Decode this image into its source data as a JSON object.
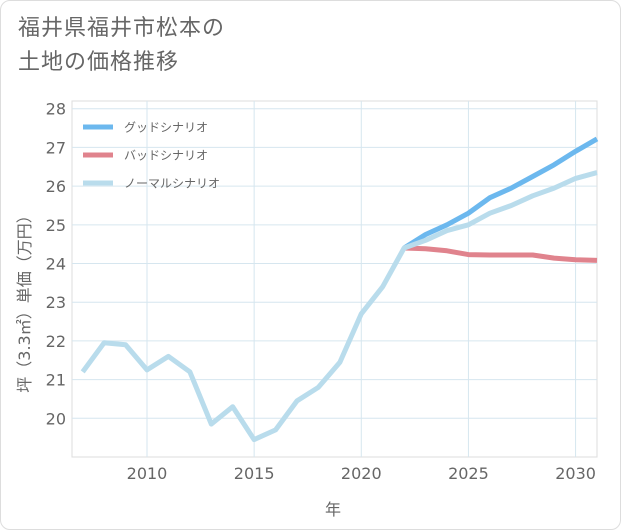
{
  "title": {
    "line1": "福井県福井市松本の",
    "line2": "土地の価格推移"
  },
  "chart_data": {
    "type": "line",
    "xlabel": "年",
    "ylabel": "坪（3.3㎡）単価（万円）",
    "xlim": [
      2006.5,
      2031
    ],
    "ylim": [
      19,
      28.2
    ],
    "xticks": [
      2010,
      2015,
      2020,
      2025,
      2030
    ],
    "yticks": [
      20,
      21,
      22,
      23,
      24,
      25,
      26,
      27,
      28
    ],
    "grid": true,
    "legend_position": "top-left",
    "series": [
      {
        "name": "グッドシナリオ",
        "color": "#6cb8ee",
        "x": [
          2022,
          2023,
          2024,
          2025,
          2026,
          2027,
          2028,
          2029,
          2030,
          2031
        ],
        "y": [
          24.4,
          24.75,
          25.0,
          25.3,
          25.7,
          25.95,
          26.25,
          26.55,
          26.9,
          27.22
        ]
      },
      {
        "name": "バッドシナリオ",
        "color": "#e0838d",
        "x": [
          2022,
          2023,
          2024,
          2025,
          2026,
          2027,
          2028,
          2029,
          2030,
          2031
        ],
        "y": [
          24.4,
          24.38,
          24.33,
          24.23,
          24.22,
          24.22,
          24.22,
          24.14,
          24.1,
          24.08
        ]
      },
      {
        "name": "ノーマルシナリオ",
        "color": "#b9dcec",
        "x": [
          2007,
          2008,
          2009,
          2010,
          2011,
          2012,
          2013,
          2014,
          2015,
          2016,
          2017,
          2018,
          2019,
          2020,
          2021,
          2022,
          2023,
          2024,
          2025,
          2026,
          2027,
          2028,
          2029,
          2030,
          2031
        ],
        "y": [
          21.2,
          21.95,
          21.9,
          21.25,
          21.6,
          21.2,
          19.85,
          20.3,
          19.45,
          19.7,
          20.45,
          20.8,
          21.45,
          22.7,
          23.4,
          24.4,
          24.6,
          24.85,
          25.0,
          25.3,
          25.5,
          25.75,
          25.95,
          26.2,
          26.35
        ]
      }
    ]
  }
}
